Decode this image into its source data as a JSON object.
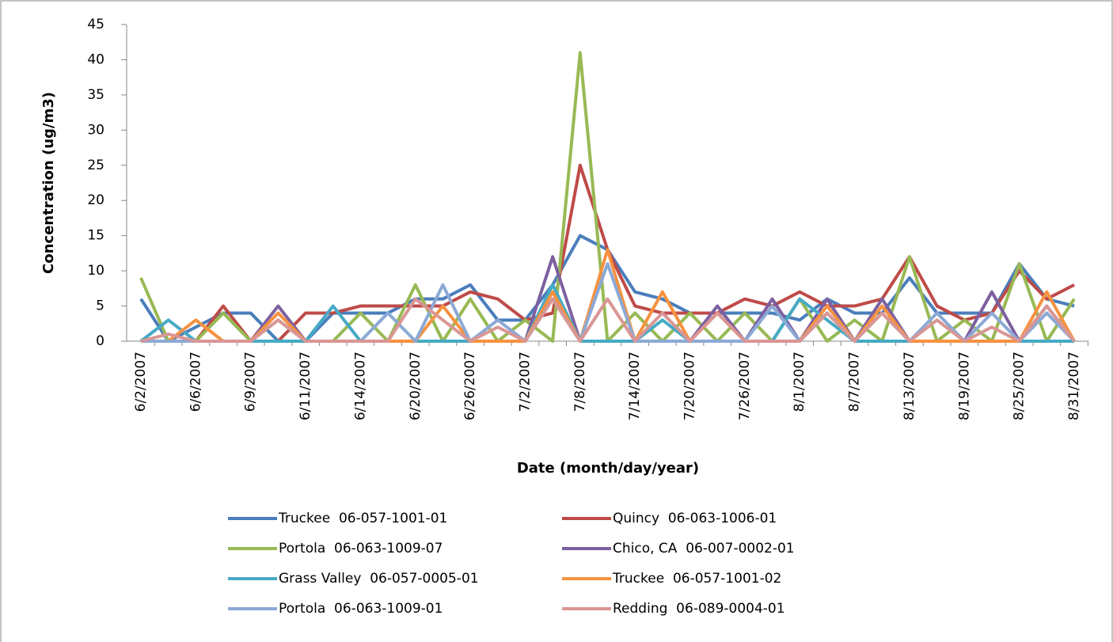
{
  "chart_data": {
    "type": "line",
    "y_label": "Concentration (ug/m3)",
    "x_label": "Date (month/day/year)",
    "categories": [
      "6/2/2007",
      null,
      "6/6/2007",
      null,
      "6/9/2007",
      null,
      "6/11/2007",
      null,
      "6/14/2007",
      null,
      "6/20/2007",
      null,
      "6/26/2007",
      null,
      "7/2/2007",
      null,
      "7/8/2007",
      null,
      "7/14/2007",
      null,
      "7/20/2007",
      null,
      "7/26/2007",
      null,
      "8/1/2007",
      null,
      "8/7/2007",
      null,
      "8/13/2007",
      null,
      "8/19/2007",
      null,
      "8/25/2007",
      null,
      "8/31/2007"
    ],
    "ylim": [
      0,
      45
    ],
    "yticks": [
      0,
      5,
      10,
      15,
      20,
      25,
      30,
      35,
      40,
      45
    ],
    "series": [
      {
        "name": "Truckee  06-057-1001-01",
        "color": "#4a7ebb",
        "values": [
          6,
          0,
          2,
          4,
          4,
          0,
          0,
          4,
          4,
          4,
          6,
          6,
          8,
          3,
          3,
          8,
          15,
          13,
          7,
          6,
          4,
          4,
          4,
          4,
          3,
          6,
          4,
          4,
          9,
          4,
          4,
          4,
          11,
          6,
          5
        ]
      },
      {
        "name": "Quincy  06-063-1006-01",
        "color": "#be4b48",
        "values": [
          0,
          0,
          0,
          5,
          0,
          0,
          4,
          4,
          5,
          5,
          5,
          5,
          7,
          6,
          3,
          4,
          25,
          13,
          5,
          4,
          4,
          4,
          6,
          5,
          7,
          5,
          5,
          6,
          12,
          5,
          3,
          4,
          10,
          6,
          8
        ]
      },
      {
        "name": "Portola  06-063-1009-07",
        "color": "#98b954",
        "values": [
          9,
          0,
          0,
          4,
          0,
          0,
          0,
          0,
          4,
          0,
          8,
          0,
          6,
          0,
          3,
          0,
          41,
          0,
          4,
          0,
          4,
          0,
          4,
          0,
          6,
          0,
          3,
          0,
          12,
          0,
          3,
          0,
          11,
          0,
          6
        ]
      },
      {
        "name": "Chico, CA  06-007-0002-01",
        "color": "#7d60a0",
        "values": [
          0,
          0,
          0,
          0,
          0,
          5,
          0,
          0,
          0,
          0,
          0,
          0,
          0,
          0,
          0,
          12,
          0,
          0,
          0,
          0,
          0,
          5,
          0,
          6,
          0,
          6,
          0,
          6,
          0,
          0,
          0,
          7,
          0,
          5,
          0
        ]
      },
      {
        "name": "Grass Valley  06-057-0005-01",
        "color": "#46aac5",
        "values": [
          0,
          3,
          0,
          0,
          0,
          0,
          0,
          5,
          0,
          0,
          0,
          0,
          0,
          0,
          0,
          8,
          0,
          0,
          0,
          3,
          0,
          0,
          0,
          0,
          6,
          3,
          0,
          0,
          0,
          0,
          0,
          0,
          0,
          0,
          0
        ]
      },
      {
        "name": "Truckee  06-057-1001-02",
        "color": "#f69240",
        "values": [
          0,
          0,
          3,
          0,
          0,
          4,
          0,
          0,
          0,
          0,
          0,
          5,
          0,
          0,
          0,
          7,
          0,
          13,
          0,
          7,
          0,
          4,
          0,
          0,
          0,
          5,
          0,
          5,
          0,
          0,
          0,
          0,
          0,
          7,
          0
        ]
      },
      {
        "name": "Portola  06-063-1009-01",
        "color": "#8ca9d6",
        "values": [
          0,
          0,
          0,
          0,
          0,
          3,
          0,
          0,
          0,
          4,
          0,
          8,
          0,
          3,
          0,
          6,
          0,
          11,
          0,
          0,
          0,
          0,
          0,
          5,
          0,
          4,
          0,
          4,
          0,
          4,
          0,
          4,
          0,
          4,
          0
        ]
      },
      {
        "name": "Redding  06-089-0004-01",
        "color": "#d99694",
        "values": [
          0,
          1,
          0,
          0,
          0,
          3,
          0,
          0,
          0,
          0,
          6,
          3,
          0,
          2,
          0,
          6,
          0,
          6,
          0,
          4,
          0,
          4,
          0,
          0,
          0,
          4,
          0,
          4,
          0,
          3,
          0,
          2,
          0,
          5,
          0
        ]
      }
    ]
  }
}
